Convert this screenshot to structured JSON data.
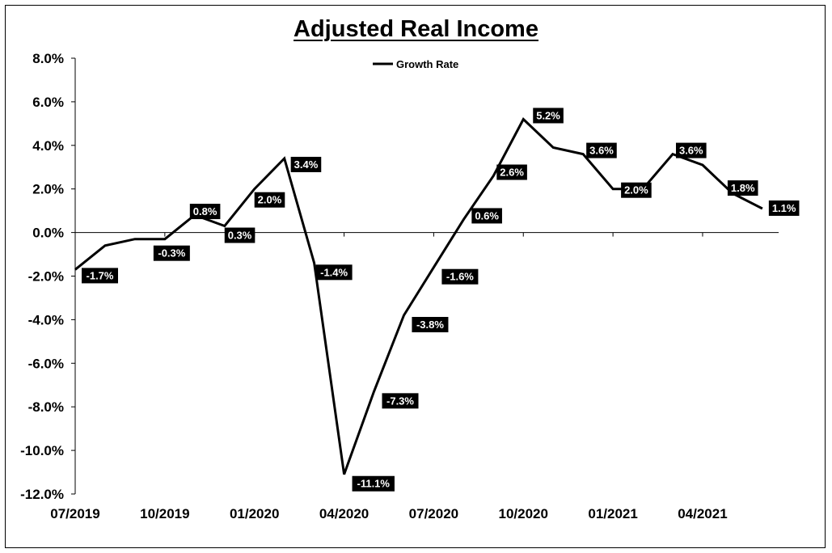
{
  "chart_data": {
    "type": "line",
    "title": "Adjusted Real Income",
    "xlabel": "",
    "ylabel": "",
    "ylim": [
      -12,
      8
    ],
    "y_ticks": [
      "8.0%",
      "6.0%",
      "4.0%",
      "2.0%",
      "0.0%",
      "-2.0%",
      "-4.0%",
      "-6.0%",
      "-8.0%",
      "-10.0%",
      "-12.0%"
    ],
    "y_tick_values": [
      8,
      6,
      4,
      2,
      0,
      -2,
      -4,
      -6,
      -8,
      -10,
      -12
    ],
    "x_ticks": [
      "07/2019",
      "10/2019",
      "01/2020",
      "04/2020",
      "07/2020",
      "10/2020",
      "01/2021",
      "04/2021"
    ],
    "legend": {
      "position": "top-center",
      "entries": [
        "Growth Rate"
      ]
    },
    "grid": false,
    "series": [
      {
        "name": "Growth Rate",
        "color": "#000000",
        "x": [
          "07/2019",
          "08/2019",
          "09/2019",
          "10/2019",
          "11/2019",
          "12/2019",
          "01/2020",
          "02/2020",
          "03/2020",
          "04/2020",
          "05/2020",
          "06/2020",
          "07/2020",
          "08/2020",
          "09/2020",
          "10/2020",
          "11/2020",
          "12/2020",
          "01/2021",
          "02/2021",
          "03/2021",
          "04/2021",
          "05/2021",
          "06/2021"
        ],
        "values": [
          -1.7,
          -0.6,
          -0.3,
          -0.3,
          0.8,
          0.3,
          2.0,
          3.4,
          -1.4,
          -11.1,
          -7.3,
          -3.8,
          -1.6,
          0.6,
          2.6,
          5.2,
          3.9,
          3.6,
          2.0,
          2.0,
          3.6,
          3.1,
          1.8,
          1.1
        ],
        "labels": [
          "-1.7%",
          "",
          "",
          "-0.3%",
          "0.8%",
          "0.3%",
          "2.0%",
          "3.4%",
          "-1.4%",
          "-11.1%",
          "-7.3%",
          "-3.8%",
          "-1.6%",
          "0.6%",
          "2.6%",
          "5.2%",
          "",
          "3.6%",
          "2.0%",
          "",
          "3.6%",
          "",
          "1.8%",
          "1.1%"
        ]
      }
    ]
  }
}
